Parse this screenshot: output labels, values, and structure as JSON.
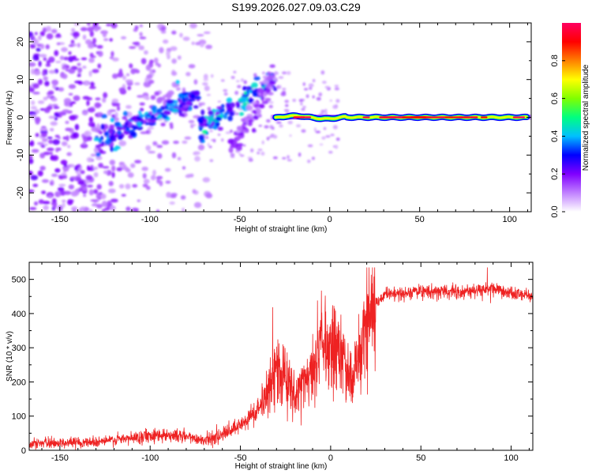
{
  "title": "S199.2026.027.09.03.C29",
  "chart_data": [
    {
      "type": "heatmap",
      "name": "spectrogram",
      "xlabel": "Height of straight line (km)",
      "ylabel": "Frequency (Hz)",
      "xlim": [
        -167,
        112
      ],
      "ylim": [
        -25,
        25
      ],
      "xticks": [
        -150,
        -100,
        -50,
        0,
        50,
        100
      ],
      "yticks": [
        -20,
        -10,
        0,
        10,
        20
      ],
      "colorbar": {
        "label": "Normalized spectral amplitude",
        "range": [
          0,
          1
        ],
        "ticks": [
          "0.0",
          "0.2",
          "0.4",
          "0.6",
          "0.8"
        ],
        "colors": [
          "#ffffff",
          "#c080ff",
          "#8000ff",
          "#0000ff",
          "#00c0ff",
          "#00ff80",
          "#80ff00",
          "#ffff00",
          "#ff8000",
          "#ff0000",
          "#ff0060"
        ]
      },
      "features": [
        {
          "name": "main-carrier-band",
          "x_start": -30,
          "x_end": 110,
          "frequency": 0,
          "amplitude": 0.95
        },
        {
          "name": "oblique-track-1",
          "x_start": -130,
          "x_end": -72,
          "f_start": -7,
          "f_end": 6,
          "amplitude": 0.3
        },
        {
          "name": "oblique-track-2",
          "x_start": -72,
          "x_end": -30,
          "f_start": -3,
          "f_end": 10,
          "amplitude": 0.35
        },
        {
          "name": "oblique-track-3",
          "x_start": -55,
          "x_end": -30,
          "f_start": -9,
          "f_end": 11,
          "amplitude": 0.15
        }
      ]
    },
    {
      "type": "line",
      "name": "snr",
      "xlabel": "Height of straight line (km)",
      "ylabel": "SNR (10 * v/v)",
      "xlim": [
        -167,
        112
      ],
      "ylim": [
        0,
        550
      ],
      "xticks": [
        -150,
        -100,
        -50,
        0,
        50,
        100
      ],
      "yticks": [
        0,
        100,
        200,
        300,
        400,
        500
      ],
      "series": [
        {
          "name": "SNR",
          "color": "#ee2222",
          "points": [
            [
              -167,
              20
            ],
            [
              -150,
              22
            ],
            [
              -130,
              25
            ],
            [
              -110,
              35
            ],
            [
              -100,
              45
            ],
            [
              -90,
              45
            ],
            [
              -80,
              40
            ],
            [
              -70,
              30
            ],
            [
              -60,
              45
            ],
            [
              -50,
              70
            ],
            [
              -40,
              120
            ],
            [
              -35,
              170
            ],
            [
              -30,
              230
            ],
            [
              -25,
              220
            ],
            [
              -20,
              150
            ],
            [
              -15,
              200
            ],
            [
              -10,
              250
            ],
            [
              -5,
              330
            ],
            [
              0,
              300
            ],
            [
              5,
              280
            ],
            [
              8,
              240
            ],
            [
              12,
              200
            ],
            [
              16,
              300
            ],
            [
              20,
              380
            ],
            [
              25,
              430
            ],
            [
              30,
              455
            ],
            [
              40,
              460
            ],
            [
              50,
              465
            ],
            [
              60,
              465
            ],
            [
              70,
              462
            ],
            [
              80,
              468
            ],
            [
              90,
              470
            ],
            [
              100,
              460
            ],
            [
              112,
              450
            ]
          ]
        }
      ]
    }
  ]
}
